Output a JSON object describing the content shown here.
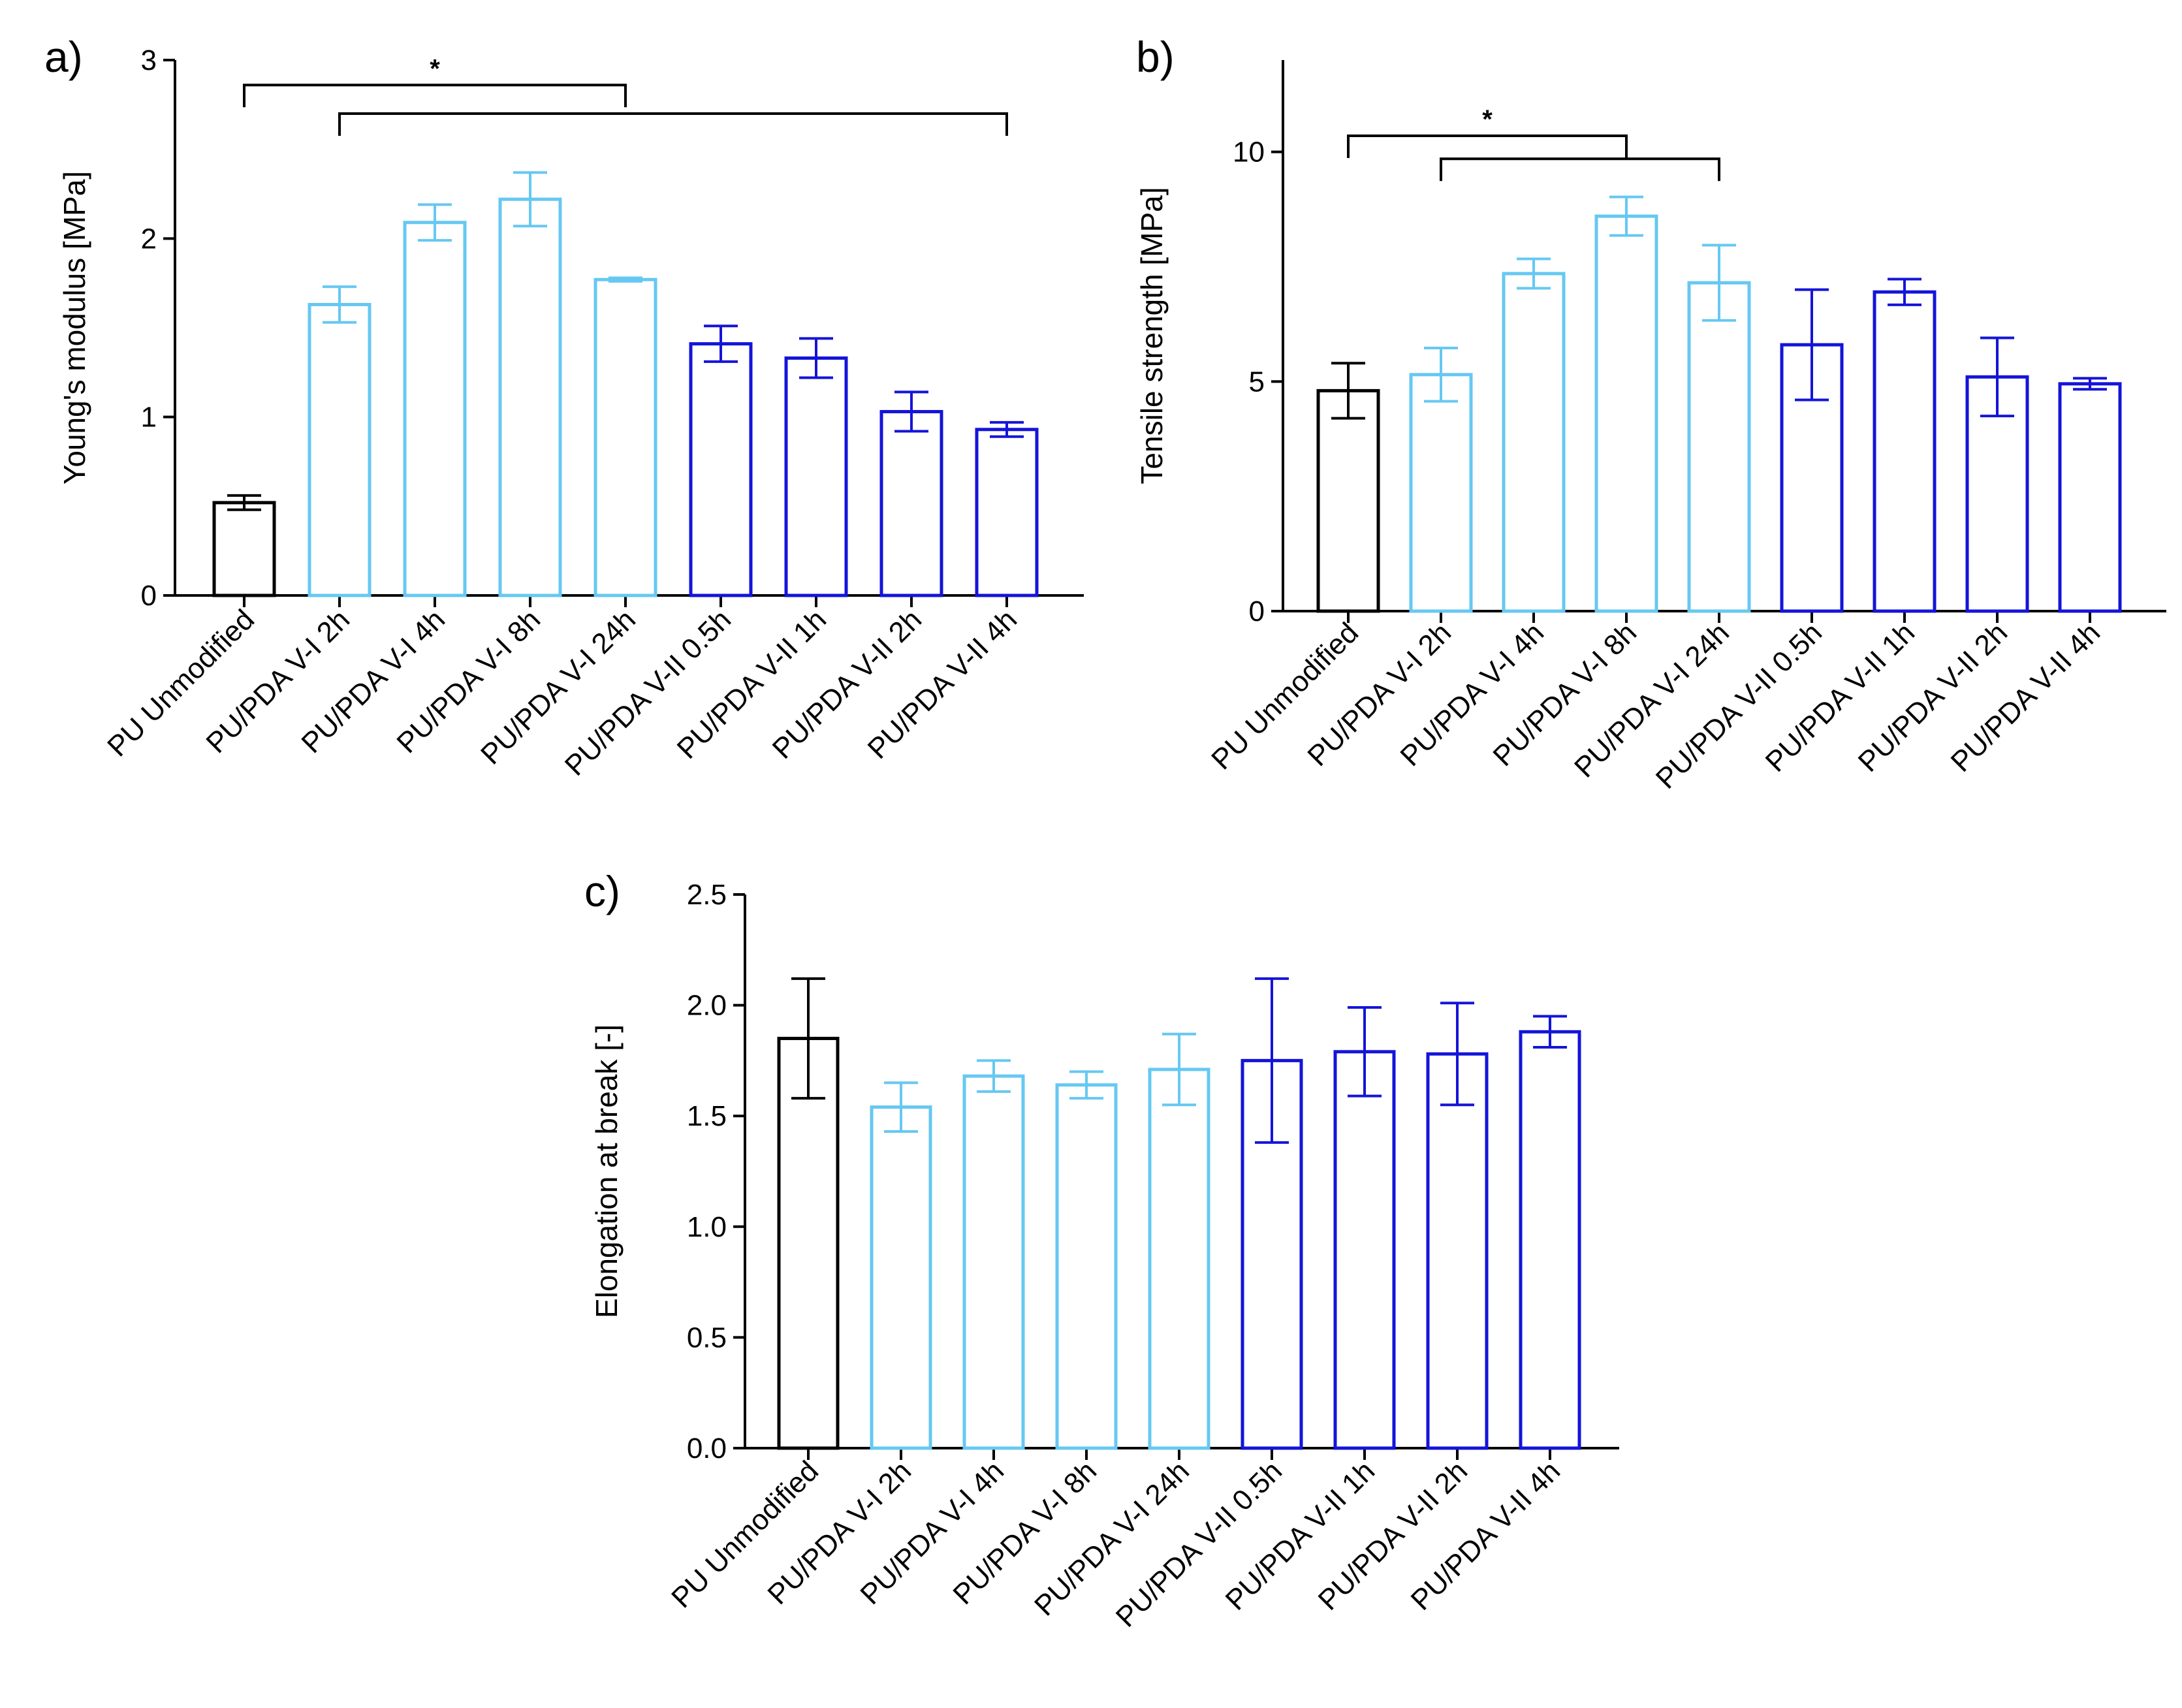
{
  "figure": {
    "colors": {
      "black": "#000000",
      "light": "#66C8F2",
      "dark": "#1414D9"
    },
    "groups": [
      "black",
      "light",
      "light",
      "light",
      "light",
      "dark",
      "dark",
      "dark",
      "dark"
    ]
  },
  "chart_data": [
    {
      "type": "bar",
      "panel_label": "a)",
      "ylabel": "Young's modulus [MPa]",
      "ylim": [
        0,
        3
      ],
      "yticks": [
        "0",
        "1",
        "2",
        "3"
      ],
      "ytick_values": [
        0,
        1,
        2,
        3
      ],
      "categories": [
        "PU Unmodified",
        "PU/PDA V-I 2h",
        "PU/PDA V-I 4h",
        "PU/PDA V-I 8h",
        "PU/PDA V-I 24h",
        "PU/PDA V-II 0.5h",
        "PU/PDA V-II 1h",
        "PU/PDA V-II 2h",
        "PU/PDA V-II 4h"
      ],
      "values": [
        0.52,
        1.63,
        2.09,
        2.22,
        1.77,
        1.41,
        1.33,
        1.03,
        0.93
      ],
      "errors": [
        0.04,
        0.1,
        0.1,
        0.15,
        0.01,
        0.1,
        0.11,
        0.11,
        0.04
      ],
      "significance": [
        {
          "from": 0,
          "to": 4,
          "label": "*",
          "level": 2.86
        },
        {
          "from": 1,
          "to": 8,
          "label": "",
          "level": 2.7
        }
      ]
    },
    {
      "type": "bar",
      "panel_label": "b)",
      "ylabel": "Tensile strength [MPa]",
      "ylim": [
        0,
        12
      ],
      "yticks": [
        "0",
        "5",
        "10"
      ],
      "ytick_values": [
        0,
        5,
        10
      ],
      "categories": [
        "PU Unmodified",
        "PU/PDA V-I 2h",
        "PU/PDA V-I 4h",
        "PU/PDA V-I 8h",
        "PU/PDA V-I 24h",
        "PU/PDA V-II 0.5h",
        "PU/PDA V-II 1h",
        "PU/PDA V-II 2h",
        "PU/PDA V-II 4h"
      ],
      "values": [
        4.8,
        5.15,
        7.35,
        8.6,
        7.15,
        5.8,
        6.95,
        5.1,
        4.95
      ],
      "errors": [
        0.6,
        0.58,
        0.32,
        0.42,
        0.82,
        1.2,
        0.28,
        0.85,
        0.12
      ],
      "significance": [
        {
          "from": 0,
          "to": 3,
          "label": "*",
          "level": 10.35
        },
        {
          "from": 1,
          "to": 4,
          "label": "",
          "level": 9.85
        }
      ]
    },
    {
      "type": "bar",
      "panel_label": "c)",
      "ylabel": "Elongation at break [-]",
      "ylim": [
        0,
        2.5
      ],
      "yticks": [
        "0.0",
        "0.5",
        "1.0",
        "1.5",
        "2.0",
        "2.5"
      ],
      "ytick_values": [
        0,
        0.5,
        1,
        1.5,
        2,
        2.5
      ],
      "categories": [
        "PU Unmodified",
        "PU/PDA V-I 2h",
        "PU/PDA V-I 4h",
        "PU/PDA V-I 8h",
        "PU/PDA V-I 24h",
        "PU/PDA V-II 0.5h",
        "PU/PDA V-II 1h",
        "PU/PDA V-II 2h",
        "PU/PDA V-II 4h"
      ],
      "values": [
        1.85,
        1.54,
        1.68,
        1.64,
        1.71,
        1.75,
        1.79,
        1.78,
        1.88
      ],
      "errors": [
        0.27,
        0.11,
        0.07,
        0.06,
        0.16,
        0.37,
        0.2,
        0.23,
        0.07
      ],
      "significance": []
    }
  ]
}
